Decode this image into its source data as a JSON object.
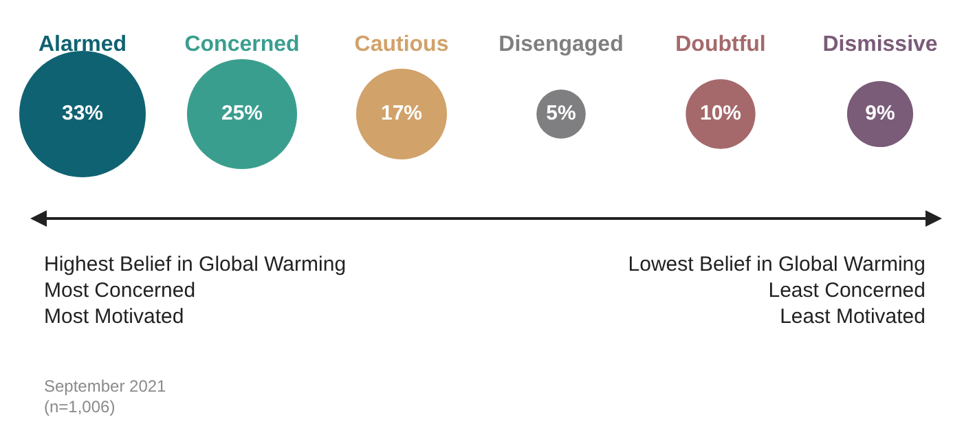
{
  "chart_data": {
    "type": "other",
    "categories": [
      "Alarmed",
      "Concerned",
      "Cautious",
      "Disengaged",
      "Doubtful",
      "Dismissive"
    ],
    "values": [
      33,
      25,
      17,
      5,
      10,
      9
    ],
    "colors": [
      "#0f6272",
      "#3a9e8e",
      "#d1a26a",
      "#7f7f81",
      "#a5696b",
      "#7a5b78"
    ],
    "value_labels": [
      "33%",
      "25%",
      "17%",
      "5%",
      "10%",
      "9%"
    ],
    "annotations": [
      "Highest Belief in Global Warming\nMost Concerned\nMost Motivated",
      "Lowest Belief in Global Warming\nLeast Concerned\nLeast Motivated",
      "September 2021\n(n=1,006)"
    ]
  }
}
